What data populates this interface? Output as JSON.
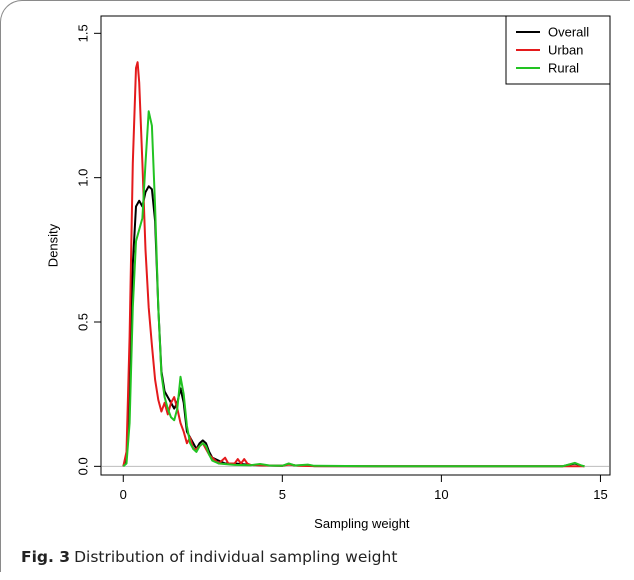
{
  "caption": {
    "label": "Fig. 3",
    "text": "Distribution of individual sampling weight"
  },
  "chart_data": {
    "type": "line",
    "xlabel": "Sampling weight",
    "ylabel": "Density",
    "xlim": [
      -0.7,
      15.3
    ],
    "ylim": [
      -0.03,
      1.56
    ],
    "xticks": [
      0,
      5,
      10,
      15
    ],
    "yticks": [
      0.0,
      0.5,
      1.0,
      1.5
    ],
    "ytick_labels": [
      "0.0",
      "0.5",
      "1.0",
      "1.5"
    ],
    "grid": false,
    "zero_line": true,
    "legend_position": "top-right",
    "series": [
      {
        "name": "Overall",
        "color": "#000000",
        "points": [
          [
            0,
            0
          ],
          [
            0.1,
            0.03
          ],
          [
            0.2,
            0.25
          ],
          [
            0.3,
            0.7
          ],
          [
            0.4,
            0.9
          ],
          [
            0.5,
            0.92
          ],
          [
            0.6,
            0.9
          ],
          [
            0.7,
            0.95
          ],
          [
            0.8,
            0.97
          ],
          [
            0.9,
            0.96
          ],
          [
            1.0,
            0.85
          ],
          [
            1.1,
            0.55
          ],
          [
            1.2,
            0.33
          ],
          [
            1.3,
            0.26
          ],
          [
            1.4,
            0.24
          ],
          [
            1.5,
            0.22
          ],
          [
            1.6,
            0.2
          ],
          [
            1.7,
            0.22
          ],
          [
            1.8,
            0.27
          ],
          [
            1.9,
            0.22
          ],
          [
            2.0,
            0.12
          ],
          [
            2.1,
            0.1
          ],
          [
            2.2,
            0.08
          ],
          [
            2.3,
            0.06
          ],
          [
            2.4,
            0.08
          ],
          [
            2.5,
            0.09
          ],
          [
            2.6,
            0.08
          ],
          [
            2.7,
            0.05
          ],
          [
            2.8,
            0.03
          ],
          [
            3.0,
            0.02
          ],
          [
            3.2,
            0.01
          ],
          [
            3.5,
            0.01
          ],
          [
            4.0,
            0.005
          ],
          [
            4.5,
            0.003
          ],
          [
            5.0,
            0.002
          ],
          [
            5.2,
            0.008
          ],
          [
            5.4,
            0.003
          ],
          [
            5.8,
            0.004
          ],
          [
            6.0,
            0.001
          ],
          [
            8.0,
            0.0
          ],
          [
            10.0,
            0.0
          ],
          [
            12.0,
            0.0
          ],
          [
            13.8,
            0.0
          ],
          [
            14.0,
            0.005
          ],
          [
            14.2,
            0.01
          ],
          [
            14.4,
            0.002
          ],
          [
            14.5,
            0.0
          ]
        ]
      },
      {
        "name": "Urban",
        "color": "#e41a1c",
        "points": [
          [
            0,
            0
          ],
          [
            0.1,
            0.05
          ],
          [
            0.2,
            0.45
          ],
          [
            0.3,
            1.05
          ],
          [
            0.4,
            1.38
          ],
          [
            0.45,
            1.4
          ],
          [
            0.5,
            1.33
          ],
          [
            0.6,
            1.05
          ],
          [
            0.7,
            0.75
          ],
          [
            0.8,
            0.55
          ],
          [
            0.9,
            0.42
          ],
          [
            1.0,
            0.3
          ],
          [
            1.1,
            0.23
          ],
          [
            1.2,
            0.19
          ],
          [
            1.3,
            0.22
          ],
          [
            1.4,
            0.18
          ],
          [
            1.5,
            0.22
          ],
          [
            1.6,
            0.24
          ],
          [
            1.7,
            0.2
          ],
          [
            1.8,
            0.15
          ],
          [
            1.9,
            0.12
          ],
          [
            2.0,
            0.08
          ],
          [
            2.1,
            0.1
          ],
          [
            2.2,
            0.06
          ],
          [
            2.3,
            0.06
          ],
          [
            2.4,
            0.07
          ],
          [
            2.5,
            0.08
          ],
          [
            2.6,
            0.06
          ],
          [
            2.7,
            0.04
          ],
          [
            2.8,
            0.03
          ],
          [
            3.0,
            0.01
          ],
          [
            3.2,
            0.03
          ],
          [
            3.3,
            0.01
          ],
          [
            3.5,
            0.01
          ],
          [
            3.6,
            0.025
          ],
          [
            3.7,
            0.01
          ],
          [
            3.8,
            0.025
          ],
          [
            3.9,
            0.01
          ],
          [
            4.0,
            0.005
          ],
          [
            4.5,
            0.003
          ],
          [
            5.0,
            0.002
          ],
          [
            5.2,
            0.006
          ],
          [
            5.5,
            0.002
          ],
          [
            6.0,
            0.001
          ],
          [
            8.0,
            0.0
          ],
          [
            10.0,
            0.0
          ],
          [
            14.0,
            0.0
          ],
          [
            14.5,
            0.0
          ]
        ]
      },
      {
        "name": "Rural",
        "color": "#22c322",
        "points": [
          [
            0,
            0
          ],
          [
            0.1,
            0.01
          ],
          [
            0.2,
            0.15
          ],
          [
            0.3,
            0.55
          ],
          [
            0.4,
            0.78
          ],
          [
            0.5,
            0.82
          ],
          [
            0.6,
            0.86
          ],
          [
            0.7,
            1.05
          ],
          [
            0.8,
            1.23
          ],
          [
            0.9,
            1.18
          ],
          [
            1.0,
            0.9
          ],
          [
            1.1,
            0.55
          ],
          [
            1.2,
            0.32
          ],
          [
            1.3,
            0.24
          ],
          [
            1.4,
            0.2
          ],
          [
            1.5,
            0.17
          ],
          [
            1.6,
            0.16
          ],
          [
            1.7,
            0.2
          ],
          [
            1.8,
            0.31
          ],
          [
            1.9,
            0.25
          ],
          [
            2.0,
            0.14
          ],
          [
            2.1,
            0.08
          ],
          [
            2.2,
            0.06
          ],
          [
            2.3,
            0.05
          ],
          [
            2.4,
            0.07
          ],
          [
            2.5,
            0.08
          ],
          [
            2.6,
            0.07
          ],
          [
            2.7,
            0.04
          ],
          [
            2.8,
            0.02
          ],
          [
            3.0,
            0.01
          ],
          [
            3.5,
            0.005
          ],
          [
            4.0,
            0.004
          ],
          [
            4.3,
            0.008
          ],
          [
            4.6,
            0.003
          ],
          [
            5.0,
            0.002
          ],
          [
            5.2,
            0.01
          ],
          [
            5.4,
            0.003
          ],
          [
            5.8,
            0.006
          ],
          [
            6.0,
            0.002
          ],
          [
            8.0,
            0.0
          ],
          [
            10.0,
            0.0
          ],
          [
            12.0,
            0.0
          ],
          [
            13.8,
            0.0
          ],
          [
            14.0,
            0.006
          ],
          [
            14.2,
            0.012
          ],
          [
            14.4,
            0.003
          ],
          [
            14.5,
            0.0
          ]
        ]
      }
    ]
  }
}
